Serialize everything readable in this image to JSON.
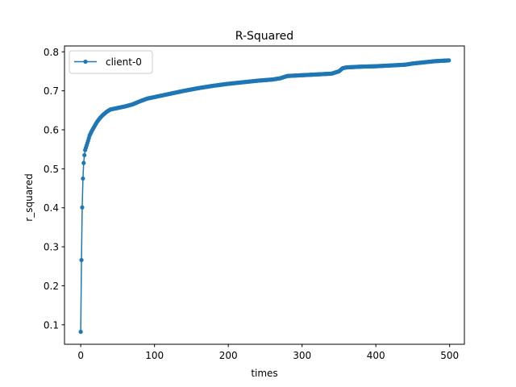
{
  "chart_data": {
    "type": "line",
    "title": "R-Squared",
    "xlabel": "times",
    "ylabel": "r_squared",
    "xlim": [
      -22,
      520
    ],
    "ylim": [
      0.05,
      0.815
    ],
    "xticks": [
      0,
      100,
      200,
      300,
      400,
      500
    ],
    "yticks": [
      0.1,
      0.2,
      0.3,
      0.4,
      0.5,
      0.6,
      0.7,
      0.8
    ],
    "grid": false,
    "legend_position": "top-left",
    "series": [
      {
        "name": "client-0",
        "color": "#1f77b4",
        "marker": "circle",
        "anchors": [
          [
            0,
            0.082
          ],
          [
            1,
            0.266
          ],
          [
            2,
            0.401
          ],
          [
            3,
            0.475
          ],
          [
            4,
            0.515
          ],
          [
            5,
            0.535
          ],
          [
            6,
            0.548
          ],
          [
            8,
            0.56
          ],
          [
            10,
            0.572
          ],
          [
            12,
            0.585
          ],
          [
            15,
            0.597
          ],
          [
            18,
            0.607
          ],
          [
            22,
            0.62
          ],
          [
            26,
            0.63
          ],
          [
            30,
            0.638
          ],
          [
            35,
            0.646
          ],
          [
            40,
            0.652
          ],
          [
            50,
            0.656
          ],
          [
            60,
            0.66
          ],
          [
            70,
            0.665
          ],
          [
            80,
            0.673
          ],
          [
            90,
            0.68
          ],
          [
            100,
            0.684
          ],
          [
            120,
            0.692
          ],
          [
            140,
            0.7
          ],
          [
            160,
            0.707
          ],
          [
            180,
            0.713
          ],
          [
            200,
            0.718
          ],
          [
            220,
            0.722
          ],
          [
            240,
            0.726
          ],
          [
            260,
            0.729
          ],
          [
            270,
            0.732
          ],
          [
            280,
            0.738
          ],
          [
            300,
            0.74
          ],
          [
            320,
            0.742
          ],
          [
            340,
            0.744
          ],
          [
            350,
            0.75
          ],
          [
            355,
            0.758
          ],
          [
            360,
            0.76
          ],
          [
            380,
            0.762
          ],
          [
            400,
            0.763
          ],
          [
            420,
            0.765
          ],
          [
            440,
            0.767
          ],
          [
            450,
            0.77
          ],
          [
            470,
            0.774
          ],
          [
            480,
            0.776
          ],
          [
            499,
            0.778
          ]
        ]
      }
    ]
  }
}
